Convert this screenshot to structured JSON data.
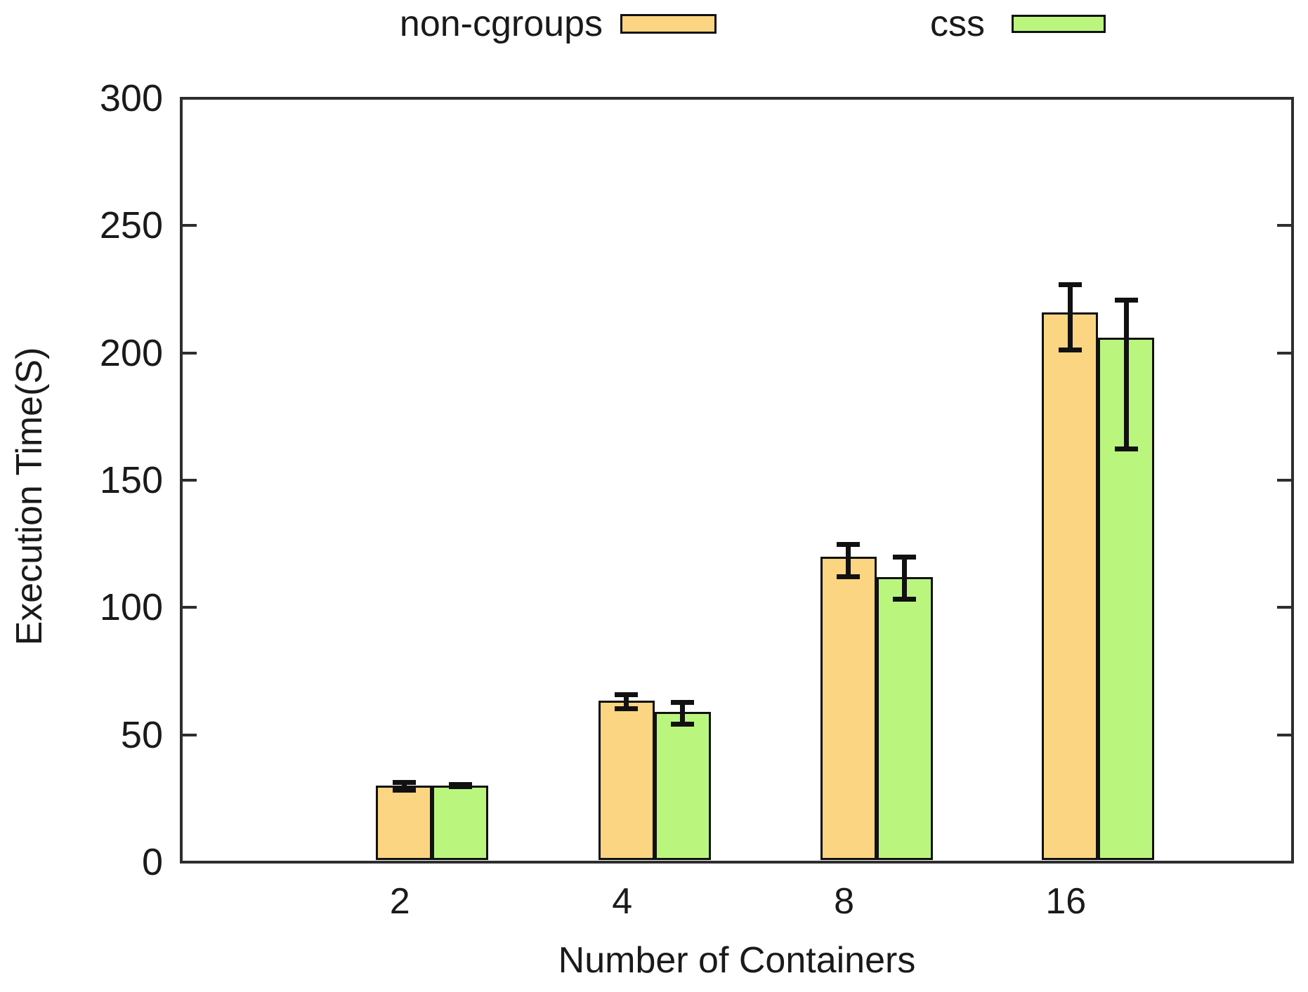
{
  "colors": {
    "non_cgroups_fill": "#fbd581",
    "css_fill": "#baf67e",
    "bar_border": "#111111",
    "axis": "#2e2e2e",
    "error_bar": "#111111",
    "background": "#ffffff"
  },
  "legend": {
    "entries": [
      {
        "label": "non-cgroups",
        "color": "#fbd581"
      },
      {
        "label": "css",
        "color": "#baf67e"
      }
    ]
  },
  "chart_data": {
    "type": "bar",
    "categories": [
      "2",
      "4",
      "8",
      "16"
    ],
    "series": [
      {
        "name": "non-cgroups",
        "color": "#fbd581",
        "values": [
          30,
          63.5,
          120,
          216
        ],
        "err_low": [
          28,
          60,
          112,
          201
        ],
        "err_high": [
          31.5,
          66,
          125,
          227
        ]
      },
      {
        "name": "css",
        "color": "#baf67e",
        "values": [
          30,
          59,
          112,
          206
        ],
        "err_low": [
          29.5,
          54,
          103,
          162
        ],
        "err_high": [
          30.5,
          63,
          120,
          221
        ]
      }
    ],
    "title": "",
    "xlabel": "Number of Containers",
    "ylabel": "Execution Time(S)",
    "ylim": [
      0,
      300
    ],
    "ytick_step": 50,
    "yticks": [
      0,
      50,
      100,
      150,
      200,
      250,
      300
    ],
    "grid": false,
    "error_bars": true,
    "legend_position": "top-center"
  }
}
